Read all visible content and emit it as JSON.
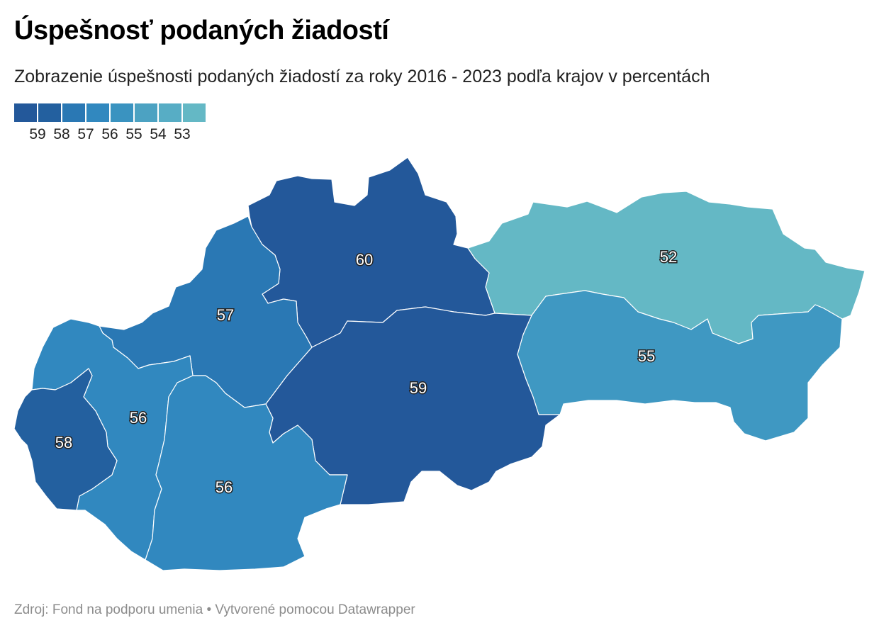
{
  "title": "Úspešnosť podaných žiadostí",
  "subtitle": "Zobrazenie úspešnosti podaných žiadostí za roky 2016 - 2023 podľa krajov v percentách",
  "legend": {
    "colors": [
      "#23589a",
      "#23609f",
      "#2a78b4",
      "#3188bf",
      "#3a93c0",
      "#4ca2c2",
      "#57adc5",
      "#64b8c5"
    ],
    "labels": [
      "59",
      "58",
      "57",
      "56",
      "55",
      "54",
      "53"
    ]
  },
  "regions": [
    {
      "id": "zilina",
      "value": "60",
      "color": "#23589a"
    },
    {
      "id": "banska-bystrica",
      "value": "59",
      "color": "#23589a"
    },
    {
      "id": "bratislava",
      "value": "58",
      "color": "#23609f"
    },
    {
      "id": "trencin",
      "value": "57",
      "color": "#2a78b4"
    },
    {
      "id": "trnava",
      "value": "56",
      "color": "#3188bf"
    },
    {
      "id": "nitra",
      "value": "56",
      "color": "#3188bf"
    },
    {
      "id": "kosice",
      "value": "55",
      "color": "#3f98c2"
    },
    {
      "id": "presov",
      "value": "52",
      "color": "#64b8c5"
    }
  ],
  "source": "Zdroj: Fond na podporu umenia • Vytvorené pomocou Datawrapper"
}
